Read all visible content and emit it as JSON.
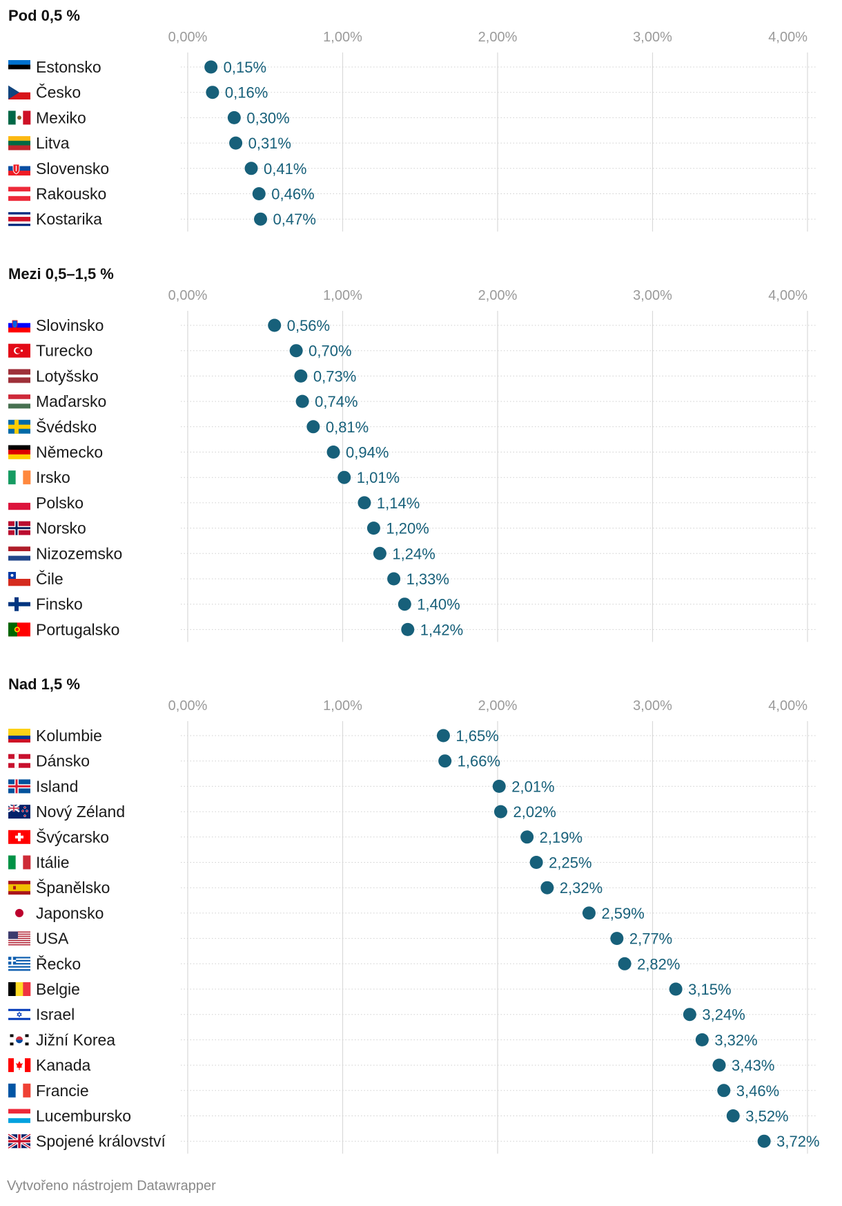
{
  "chart_data": {
    "type": "scatter",
    "axis": {
      "min": 0,
      "max": 4,
      "ticks": [
        "0,00%",
        "1,00%",
        "2,00%",
        "3,00%",
        "4,00%"
      ],
      "tick_values": [
        0,
        1,
        2,
        3,
        4
      ]
    },
    "colors": {
      "dot": "#17607a",
      "label": "#17607a",
      "grid": "#d9d9d9",
      "tick": "#9a9a9a"
    },
    "panels": [
      {
        "title": "Pod 0,5 %",
        "rows": [
          {
            "country": "Estonsko",
            "value": 0.15,
            "label": "0,15%",
            "flag": "estonia-flag"
          },
          {
            "country": "Česko",
            "value": 0.16,
            "label": "0,16%",
            "flag": "czechia-flag"
          },
          {
            "country": "Mexiko",
            "value": 0.3,
            "label": "0,30%",
            "flag": "mexico-flag"
          },
          {
            "country": "Litva",
            "value": 0.31,
            "label": "0,31%",
            "flag": "lithuania-flag"
          },
          {
            "country": "Slovensko",
            "value": 0.41,
            "label": "0,41%",
            "flag": "slovakia-flag"
          },
          {
            "country": "Rakousko",
            "value": 0.46,
            "label": "0,46%",
            "flag": "austria-flag"
          },
          {
            "country": "Kostarika",
            "value": 0.47,
            "label": "0,47%",
            "flag": "costa-rica-flag"
          }
        ]
      },
      {
        "title": "Mezi 0,5–1,5 %",
        "rows": [
          {
            "country": "Slovinsko",
            "value": 0.56,
            "label": "0,56%",
            "flag": "slovenia-flag"
          },
          {
            "country": "Turecko",
            "value": 0.7,
            "label": "0,70%",
            "flag": "turkey-flag"
          },
          {
            "country": "Lotyšsko",
            "value": 0.73,
            "label": "0,73%",
            "flag": "latvia-flag"
          },
          {
            "country": "Maďarsko",
            "value": 0.74,
            "label": "0,74%",
            "flag": "hungary-flag"
          },
          {
            "country": "Švédsko",
            "value": 0.81,
            "label": "0,81%",
            "flag": "sweden-flag"
          },
          {
            "country": "Německo",
            "value": 0.94,
            "label": "0,94%",
            "flag": "germany-flag"
          },
          {
            "country": "Irsko",
            "value": 1.01,
            "label": "1,01%",
            "flag": "ireland-flag"
          },
          {
            "country": "Polsko",
            "value": 1.14,
            "label": "1,14%",
            "flag": "poland-flag"
          },
          {
            "country": "Norsko",
            "value": 1.2,
            "label": "1,20%",
            "flag": "norway-flag"
          },
          {
            "country": "Nizozemsko",
            "value": 1.24,
            "label": "1,24%",
            "flag": "netherlands-flag"
          },
          {
            "country": "Čile",
            "value": 1.33,
            "label": "1,33%",
            "flag": "chile-flag"
          },
          {
            "country": "Finsko",
            "value": 1.4,
            "label": "1,40%",
            "flag": "finland-flag"
          },
          {
            "country": "Portugalsko",
            "value": 1.42,
            "label": "1,42%",
            "flag": "portugal-flag"
          }
        ]
      },
      {
        "title": "Nad 1,5 %",
        "rows": [
          {
            "country": "Kolumbie",
            "value": 1.65,
            "label": "1,65%",
            "flag": "colombia-flag"
          },
          {
            "country": "Dánsko",
            "value": 1.66,
            "label": "1,66%",
            "flag": "denmark-flag"
          },
          {
            "country": "Island",
            "value": 2.01,
            "label": "2,01%",
            "flag": "iceland-flag"
          },
          {
            "country": "Nový Zéland",
            "value": 2.02,
            "label": "2,02%",
            "flag": "new-zealand-flag"
          },
          {
            "country": "Švýcarsko",
            "value": 2.19,
            "label": "2,19%",
            "flag": "switzerland-flag"
          },
          {
            "country": "Itálie",
            "value": 2.25,
            "label": "2,25%",
            "flag": "italy-flag"
          },
          {
            "country": "Španělsko",
            "value": 2.32,
            "label": "2,32%",
            "flag": "spain-flag"
          },
          {
            "country": "Japonsko",
            "value": 2.59,
            "label": "2,59%",
            "flag": "japan-flag"
          },
          {
            "country": "USA",
            "value": 2.77,
            "label": "2,77%",
            "flag": "usa-flag"
          },
          {
            "country": "Řecko",
            "value": 2.82,
            "label": "2,82%",
            "flag": "greece-flag"
          },
          {
            "country": "Belgie",
            "value": 3.15,
            "label": "3,15%",
            "flag": "belgium-flag"
          },
          {
            "country": "Israel",
            "value": 3.24,
            "label": "3,24%",
            "flag": "israel-flag"
          },
          {
            "country": "Jižní Korea",
            "value": 3.32,
            "label": "3,32%",
            "flag": "south-korea-flag"
          },
          {
            "country": "Kanada",
            "value": 3.43,
            "label": "3,43%",
            "flag": "canada-flag"
          },
          {
            "country": "Francie",
            "value": 3.46,
            "label": "3,46%",
            "flag": "france-flag"
          },
          {
            "country": "Lucembursko",
            "value": 3.52,
            "label": "3,52%",
            "flag": "luxembourg-flag"
          },
          {
            "country": "Spojené království",
            "value": 3.72,
            "label": "3,72%",
            "flag": "uk-flag"
          }
        ]
      }
    ]
  },
  "footer": "Vytvořeno nástrojem Datawrapper"
}
